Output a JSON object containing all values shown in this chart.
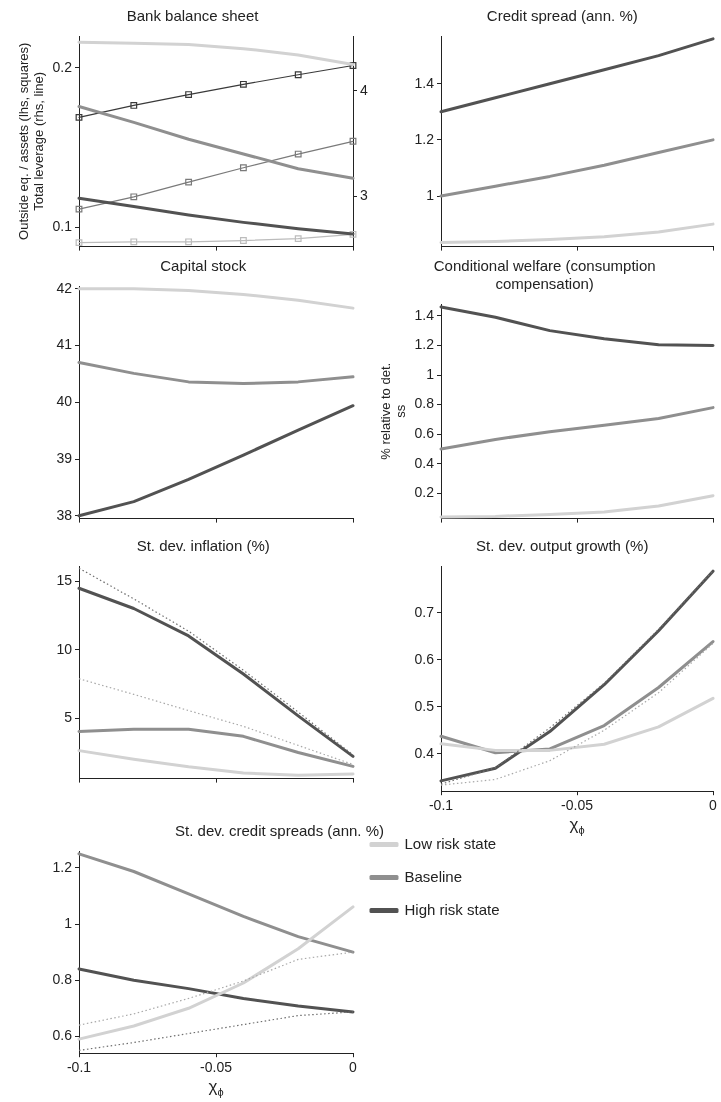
{
  "chart_data": [
    {
      "type": "line",
      "title": "Bank balance sheet",
      "ylabel": "Outside eq. / assets (lhs, squares)\nTotal leverage (rhs, line)",
      "x": [
        -0.1,
        -0.08,
        -0.06,
        -0.04,
        -0.02,
        0
      ],
      "xlim": [
        -0.1,
        0
      ],
      "xticks": [
        -0.1,
        -0.05,
        0
      ],
      "ylim": [
        0.088,
        0.22
      ],
      "yticks": [
        0.1,
        0.2
      ],
      "y2lim": [
        2.52,
        4.52
      ],
      "y2ticks": [
        3,
        4
      ],
      "tick_labels": "y",
      "series": [
        {
          "color": "#d2d2d2",
          "axis": "y2",
          "values": [
            4.46,
            4.45,
            4.44,
            4.4,
            4.34,
            4.25
          ]
        },
        {
          "color": "#8f8f8f",
          "axis": "y2",
          "values": [
            3.85,
            3.7,
            3.54,
            3.4,
            3.26,
            3.17
          ]
        },
        {
          "color": "#525252",
          "axis": "y2",
          "values": [
            2.98,
            2.9,
            2.82,
            2.75,
            2.69,
            2.64
          ]
        },
        {
          "color": "#bcbcbc",
          "marker": "square",
          "values": [
            0.0905,
            0.091,
            0.091,
            0.0918,
            0.093,
            0.0957
          ]
        },
        {
          "color": "#7a7a7a",
          "marker": "square",
          "values": [
            0.1115,
            0.1192,
            0.1284,
            0.1374,
            0.146,
            0.154
          ]
        },
        {
          "color": "#3a3a3a",
          "marker": "square",
          "values": [
            0.169,
            0.1765,
            0.1833,
            0.1897,
            0.1957,
            0.2015
          ]
        }
      ]
    },
    {
      "type": "line",
      "title": "Credit spread (ann. %)",
      "x": [
        -0.1,
        -0.08,
        -0.06,
        -0.04,
        -0.02,
        0
      ],
      "xlim": [
        -0.1,
        0
      ],
      "xticks": [
        -0.1,
        -0.05,
        0
      ],
      "ylim": [
        0.82,
        1.57
      ],
      "yticks": [
        1,
        1.2,
        1.4
      ],
      "tick_labels": "y",
      "series": [
        {
          "color": "#d2d2d2",
          "values": [
            0.835,
            0.838,
            0.845,
            0.855,
            0.872,
            0.9
          ]
        },
        {
          "color": "#8f8f8f",
          "values": [
            1.0,
            1.035,
            1.07,
            1.11,
            1.155,
            1.2
          ]
        },
        {
          "color": "#525252",
          "values": [
            1.3,
            1.35,
            1.4,
            1.45,
            1.5,
            1.56
          ]
        }
      ]
    },
    {
      "type": "line",
      "title": "Capital stock",
      "x": [
        -0.1,
        -0.08,
        -0.06,
        -0.04,
        -0.02,
        0
      ],
      "xlim": [
        -0.1,
        0
      ],
      "xticks": [
        -0.1,
        -0.05,
        0
      ],
      "ylim": [
        37.95,
        42.05
      ],
      "yticks": [
        38,
        39,
        40,
        41,
        42
      ],
      "tick_labels": "y",
      "series": [
        {
          "color": "#d2d2d2",
          "values": [
            42.0,
            42.0,
            41.97,
            41.9,
            41.8,
            41.66
          ]
        },
        {
          "color": "#8f8f8f",
          "values": [
            40.7,
            40.51,
            40.36,
            40.33,
            40.36,
            40.45
          ]
        },
        {
          "color": "#525252",
          "values": [
            38.0,
            38.25,
            38.64,
            39.07,
            39.51,
            39.94
          ]
        }
      ]
    },
    {
      "type": "line",
      "title": "Conditional welfare (consumption compensation)",
      "ylabel": "% relative to det. ss",
      "x": [
        -0.1,
        -0.08,
        -0.06,
        -0.04,
        -0.02,
        0
      ],
      "xlim": [
        -0.1,
        0
      ],
      "xticks": [
        -0.1,
        -0.05,
        0
      ],
      "ylim": [
        0.03,
        1.48
      ],
      "yticks": [
        0.2,
        0.4,
        0.6,
        0.8,
        1,
        1.2,
        1.4
      ],
      "tick_labels": "y",
      "series": [
        {
          "color": "#d2d2d2",
          "values": [
            0.041,
            0.045,
            0.058,
            0.075,
            0.115,
            0.185
          ]
        },
        {
          "color": "#8f8f8f",
          "values": [
            0.5,
            0.565,
            0.617,
            0.66,
            0.707,
            0.78
          ]
        },
        {
          "color": "#525252",
          "values": [
            1.46,
            1.39,
            1.3,
            1.245,
            1.205,
            1.2
          ]
        }
      ]
    },
    {
      "type": "line",
      "title": "St. dev. inflation (%)",
      "x": [
        -0.1,
        -0.08,
        -0.06,
        -0.04,
        -0.02,
        0
      ],
      "xlim": [
        -0.1,
        0
      ],
      "xticks": [
        -0.1,
        -0.05,
        0
      ],
      "ylim": [
        0.6,
        16.1
      ],
      "yticks": [
        5,
        10,
        15
      ],
      "tick_labels": "y",
      "series": [
        {
          "color": "#a8a8a8",
          "line_style": "dotted",
          "values": [
            7.88,
            6.74,
            5.56,
            4.41,
            3.02,
            1.63
          ]
        },
        {
          "color": "#6e6e6e",
          "line_style": "dotted",
          "values": [
            15.94,
            13.7,
            11.35,
            8.5,
            5.45,
            2.33
          ]
        },
        {
          "color": "#d2d2d2",
          "values": [
            2.64,
            2.01,
            1.46,
            1.0,
            0.85,
            0.94
          ]
        },
        {
          "color": "#8f8f8f",
          "values": [
            4.03,
            4.2,
            4.2,
            3.68,
            2.5,
            1.49
          ]
        },
        {
          "color": "#525252",
          "values": [
            14.48,
            13.0,
            11.0,
            8.23,
            5.17,
            2.22
          ]
        }
      ]
    },
    {
      "type": "line",
      "title": "St. dev. output growth (%)",
      "xlabel": "χ$_{ϕ}$",
      "x": [
        -0.1,
        -0.08,
        -0.06,
        -0.04,
        -0.02,
        0
      ],
      "xlim": [
        -0.1,
        0
      ],
      "xticks": [
        -0.1,
        -0.05,
        0
      ],
      "ylim": [
        0.32,
        0.8
      ],
      "yticks": [
        0.4,
        0.5,
        0.6,
        0.7
      ],
      "series": [
        {
          "color": "#a8a8a8",
          "line_style": "dotted",
          "values": [
            0.333,
            0.345,
            0.385,
            0.45,
            0.53,
            0.635
          ]
        },
        {
          "color": "#6e6e6e",
          "line_style": "dotted",
          "values": [
            0.335,
            0.37,
            0.455,
            0.55,
            0.665,
            0.79
          ]
        },
        {
          "color": "#d2d2d2",
          "values": [
            0.421,
            0.407,
            0.407,
            0.42,
            0.457,
            0.518
          ]
        },
        {
          "color": "#8f8f8f",
          "values": [
            0.437,
            0.402,
            0.41,
            0.46,
            0.541,
            0.639
          ]
        },
        {
          "color": "#525252",
          "values": [
            0.342,
            0.369,
            0.447,
            0.547,
            0.662,
            0.789
          ]
        }
      ]
    },
    {
      "type": "line",
      "title": "St. dev. credit spreads (ann. %)",
      "xlabel": "χ$_{ϕ}$",
      "x": [
        -0.1,
        -0.08,
        -0.06,
        -0.04,
        -0.02,
        0
      ],
      "xlim": [
        -0.1,
        0
      ],
      "xticks": [
        -0.1,
        -0.05,
        0
      ],
      "ylim": [
        0.54,
        1.26
      ],
      "yticks": [
        0.6,
        0.8,
        1,
        1.2
      ],
      "legend": "top right",
      "series": [
        {
          "color": "#a8a8a8",
          "line_style": "dotted",
          "values": [
            0.64,
            0.68,
            0.735,
            0.797,
            0.874,
            0.9
          ]
        },
        {
          "color": "#6e6e6e",
          "line_style": "dotted",
          "values": [
            0.55,
            0.578,
            0.61,
            0.642,
            0.674,
            0.687
          ]
        },
        {
          "name": "Low risk state",
          "color": "#d2d2d2",
          "values": [
            0.59,
            0.637,
            0.7,
            0.79,
            0.912,
            1.061
          ]
        },
        {
          "name": "Baseline",
          "color": "#8f8f8f",
          "values": [
            1.25,
            1.187,
            1.107,
            1.027,
            0.955,
            0.9
          ]
        },
        {
          "name": "High risk state",
          "color": "#525252",
          "values": [
            0.84,
            0.8,
            0.77,
            0.735,
            0.708,
            0.687
          ]
        }
      ]
    }
  ]
}
